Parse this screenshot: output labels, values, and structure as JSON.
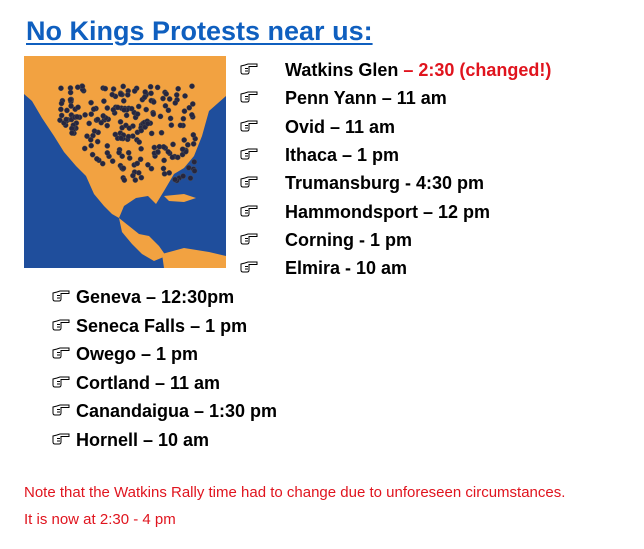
{
  "title": "No Kings Protests near us:",
  "right_list": [
    {
      "place": "Watkins Glen",
      "change": "– 2:30 (changed!)"
    },
    {
      "text": "Penn Yann – 11 am"
    },
    {
      "text": "Ovid – 11 am"
    },
    {
      "text": "Ithaca – 1 pm"
    },
    {
      "text": "Trumansburg - 4:30 pm"
    },
    {
      "text": "Hammondsport – 12 pm"
    },
    {
      "text": "Corning - 1 pm"
    },
    {
      "text": "Elmira - 10 am"
    }
  ],
  "left_list": [
    "Geneva – 12:30pm",
    "Seneca Falls – 1 pm",
    "Owego – 1 pm",
    "Cortland – 11 am",
    "Canandaigua – 1:30 pm",
    "Hornell – 10 am"
  ],
  "note": [
    "Note that the Watkins Rally time had to change due to unforeseen circumstances.",
    "It is now at 2:30 - 4 pm"
  ]
}
